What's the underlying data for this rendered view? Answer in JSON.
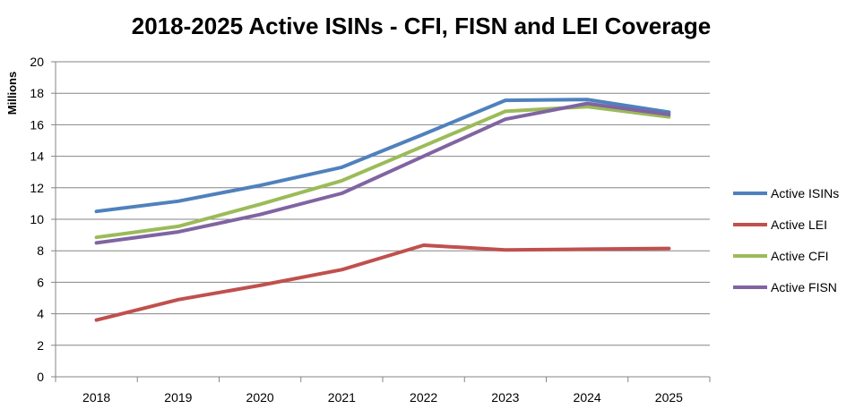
{
  "chart_data": {
    "type": "line",
    "title": "2018-2025 Active ISINs - CFI, FISN and LEI Coverage",
    "ylabel": "Millions",
    "xlabel": "",
    "categories": [
      "2018",
      "2019",
      "2020",
      "2021",
      "2022",
      "2023",
      "2024",
      "2025"
    ],
    "ylim": [
      0,
      20
    ],
    "yticks": [
      "0",
      "2",
      "4",
      "6",
      "8",
      "10",
      "12",
      "14",
      "16",
      "18",
      "20"
    ],
    "grid": true,
    "legend_position": "right",
    "series": [
      {
        "name": "Active ISINs",
        "color": "#4F81BD",
        "values": [
          10.5,
          11.15,
          12.15,
          13.3,
          15.4,
          17.55,
          17.6,
          16.8
        ]
      },
      {
        "name": "Active LEI",
        "color": "#C0504D",
        "values": [
          3.6,
          4.9,
          5.8,
          6.8,
          8.35,
          8.05,
          8.1,
          8.15
        ]
      },
      {
        "name": "Active CFI",
        "color": "#9BBB59",
        "values": [
          8.85,
          9.55,
          10.95,
          12.45,
          14.65,
          16.85,
          17.15,
          16.5
        ]
      },
      {
        "name": "Active FISN",
        "color": "#8064A2",
        "values": [
          8.5,
          9.2,
          10.3,
          11.65,
          14.0,
          16.35,
          17.35,
          16.65
        ]
      }
    ]
  }
}
